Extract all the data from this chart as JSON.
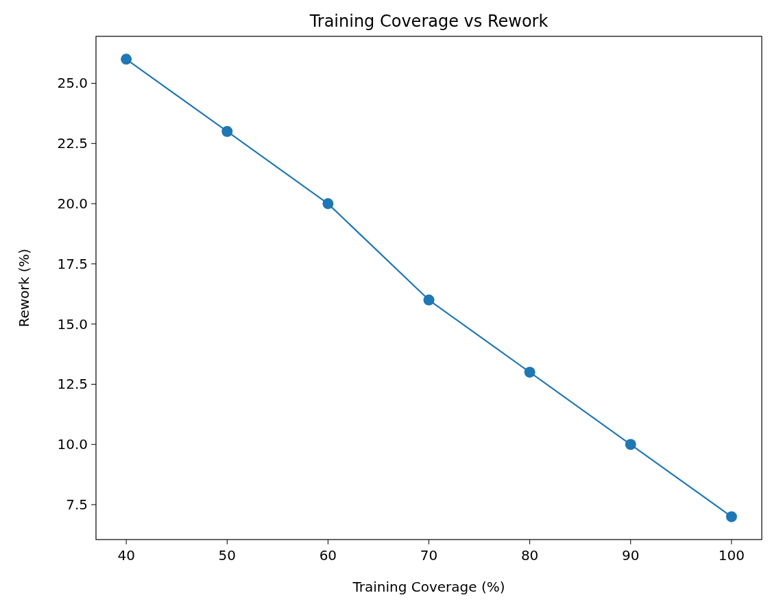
{
  "chart_data": {
    "type": "line",
    "title": "Training Coverage vs Rework",
    "xlabel": "Training Coverage (%)",
    "ylabel": "Rework (%)",
    "x": [
      40,
      50,
      60,
      70,
      80,
      90,
      100
    ],
    "series": [
      {
        "color": "#1f77b4",
        "values": [
          26,
          23,
          20,
          16,
          13,
          10,
          7
        ]
      }
    ],
    "xlim": [
      37,
      103
    ],
    "xticks": [
      40,
      50,
      60,
      70,
      80,
      90,
      100
    ],
    "ylim": [
      6.05,
      26.95
    ],
    "yticks": [
      {
        "value": 7.5,
        "label": "7.5"
      },
      {
        "value": 10,
        "label": "10.0"
      },
      {
        "value": 12.5,
        "label": "12.5"
      },
      {
        "value": 15,
        "label": "15.0"
      },
      {
        "value": 17.5,
        "label": "17.5"
      },
      {
        "value": 20,
        "label": "20.0"
      },
      {
        "value": 22.5,
        "label": "22.5"
      },
      {
        "value": 25,
        "label": "25.0"
      }
    ],
    "marker": "circle",
    "line_style": "solid",
    "grid": false
  }
}
